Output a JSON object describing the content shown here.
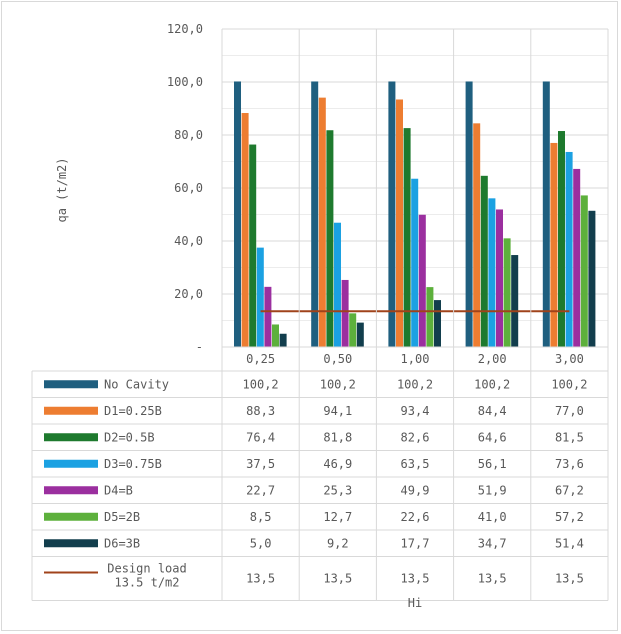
{
  "chart_data": {
    "type": "bar",
    "title": "",
    "xlabel": "Hi",
    "ylabel": "qa (t/m2)",
    "ylim": [
      0,
      120
    ],
    "y_ticks": [
      "-",
      "20,0",
      "40,0",
      "60,0",
      "80,0",
      "100,0",
      "120,0"
    ],
    "categories": [
      "0,25",
      "0,50",
      "1,00",
      "2,00",
      "3,00"
    ],
    "grid": true,
    "legend": "data-table",
    "series": [
      {
        "name": "No Cavity",
        "color": "#1f5f7f",
        "values": [
          100.2,
          100.2,
          100.2,
          100.2,
          100.2
        ],
        "labels": [
          "100,2",
          "100,2",
          "100,2",
          "100,2",
          "100,2"
        ]
      },
      {
        "name": "D1=0.25B",
        "color": "#ed7d31",
        "values": [
          88.3,
          94.1,
          93.4,
          84.4,
          77.0
        ],
        "labels": [
          "88,3",
          "94,1",
          "93,4",
          "84,4",
          "77,0"
        ]
      },
      {
        "name": "D2=0.5B",
        "color": "#1e7a2e",
        "values": [
          76.4,
          81.8,
          82.6,
          64.6,
          81.5
        ],
        "labels": [
          "76,4",
          "81,8",
          "82,6",
          "64,6",
          "81,5"
        ]
      },
      {
        "name": "D3=0.75B",
        "color": "#1ba1e2",
        "values": [
          37.5,
          46.9,
          63.5,
          56.1,
          73.6
        ],
        "labels": [
          "37,5",
          "46,9",
          "63,5",
          "56,1",
          "73,6"
        ]
      },
      {
        "name": "D4=B",
        "color": "#9b2f9f",
        "values": [
          22.7,
          25.3,
          49.9,
          51.9,
          67.2
        ],
        "labels": [
          "22,7",
          "25,3",
          "49,9",
          "51,9",
          "67,2"
        ]
      },
      {
        "name": "D5=2B",
        "color": "#5db03c",
        "values": [
          8.5,
          12.7,
          22.6,
          41.0,
          57.2
        ],
        "labels": [
          "8,5",
          "12,7",
          "22,6",
          "41,0",
          "57,2"
        ]
      },
      {
        "name": "D6=3B",
        "color": "#123e4d",
        "values": [
          5.0,
          9.2,
          17.7,
          34.7,
          51.4
        ],
        "labels": [
          "5,0",
          "9,2",
          "17,7",
          "34,7",
          "51,4"
        ]
      }
    ],
    "line_series": {
      "name": "Design load 13.5 t/m2",
      "name_lines": [
        "Design load",
        "13.5 t/m2"
      ],
      "color": "#a0431b",
      "values": [
        13.5,
        13.5,
        13.5,
        13.5,
        13.5
      ],
      "labels": [
        "13,5",
        "13,5",
        "13,5",
        "13,5",
        "13,5"
      ]
    }
  }
}
